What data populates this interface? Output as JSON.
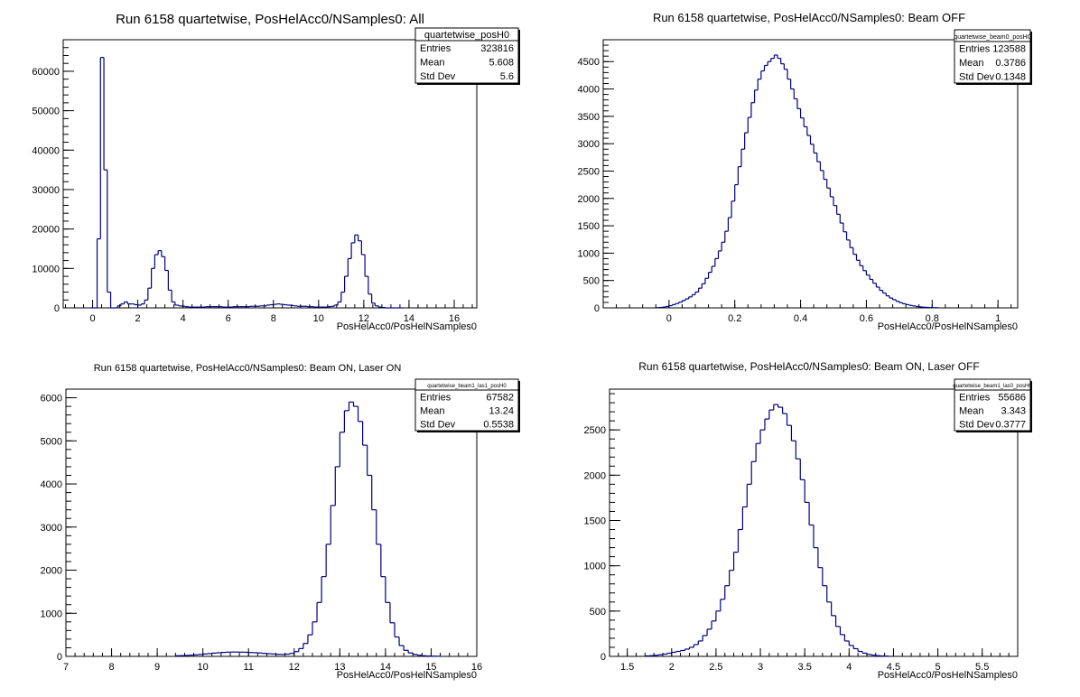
{
  "chart_data": [
    {
      "type": "histogram",
      "title": "Run 6158 quartetwise, PosHelAcc0/NSamples0: All",
      "xlabel": "PosHelAcc0/PosHelNSamples0",
      "ylabel": "",
      "xlim": [
        -1.3,
        17.0
      ],
      "ylim": [
        0,
        68000
      ],
      "xticks": [
        0,
        2,
        4,
        6,
        8,
        10,
        12,
        14,
        16
      ],
      "yticks": [
        0,
        10000,
        20000,
        30000,
        40000,
        50000,
        60000
      ],
      "stats": {
        "name": "quartetwise_posH0",
        "entries": "323816",
        "mean": "5.608",
        "std_dev": "5.6"
      },
      "bins": {
        "start": -0.1,
        "width": 0.15,
        "values": [
          0,
          0,
          17500,
          63500,
          35000,
          4000,
          0,
          0,
          500,
          1000,
          1500,
          1000,
          1000,
          800,
          700,
          1000,
          2000,
          5000,
          10000,
          13500,
          14500,
          13000,
          9500,
          4500,
          1500,
          700,
          500,
          400,
          300,
          200,
          200,
          200,
          200,
          200,
          300,
          300,
          300,
          300,
          300,
          200,
          200,
          200,
          300,
          300,
          300,
          300,
          300,
          400,
          400,
          400,
          500,
          500,
          700,
          800,
          900,
          1000,
          900,
          800,
          700,
          600,
          500,
          400,
          400,
          400,
          300,
          300,
          200,
          200,
          200,
          200,
          300,
          400,
          700,
          1500,
          4000,
          8000,
          12500,
          16500,
          18500,
          17000,
          13500,
          8000,
          3500,
          1200,
          500,
          200,
          100,
          0,
          0,
          0,
          0,
          0
        ]
      },
      "label_names": {
        "entries": "Entries",
        "mean": "Mean",
        "std_dev": "Std Dev"
      }
    },
    {
      "type": "histogram",
      "title": "Run 6158 quartetwise, PosHelAcc0/NSamples0: Beam OFF",
      "xlabel": "PosHelAcc0/PosHelNSamples0",
      "ylabel": "",
      "xlim": [
        -0.2,
        1.06
      ],
      "ylim": [
        0,
        4900
      ],
      "xticks": [
        0,
        0.2,
        0.4,
        0.6,
        0.8,
        1
      ],
      "yticks": [
        0,
        500,
        1000,
        1500,
        2000,
        2500,
        3000,
        3500,
        4000,
        4500
      ],
      "stats": {
        "name": "quartetwise_beam0_posH0",
        "entries": "123588",
        "mean": "0.3786",
        "std_dev": "0.1348"
      },
      "bins": {
        "start": -0.04,
        "width": 0.01,
        "values": [
          4,
          8,
          14,
          25,
          40,
          60,
          80,
          105,
          135,
          165,
          200,
          240,
          290,
          360,
          440,
          540,
          650,
          760,
          900,
          1040,
          1200,
          1400,
          1650,
          1950,
          2250,
          2580,
          2900,
          3200,
          3480,
          3750,
          3980,
          4180,
          4330,
          4430,
          4500,
          4560,
          4620,
          4560,
          4460,
          4360,
          4180,
          4000,
          3820,
          3640,
          3470,
          3310,
          3150,
          2990,
          2830,
          2670,
          2510,
          2350,
          2190,
          2030,
          1870,
          1710,
          1550,
          1390,
          1240,
          1100,
          980,
          870,
          770,
          680,
          600,
          520,
          450,
          380,
          320,
          270,
          220,
          180,
          150,
          120,
          95,
          75,
          60,
          45,
          35,
          25,
          18,
          12,
          9,
          6,
          4,
          3
        ]
      },
      "label_names": {
        "entries": "Entries",
        "mean": "Mean",
        "std_dev": "Std Dev"
      }
    },
    {
      "type": "histogram",
      "title": "Run 6158 quartetwise, PosHelAcc0/NSamples0: Beam ON, Laser ON",
      "xlabel": "PosHelAcc0/PosHelNSamples0",
      "ylabel": "",
      "xlim": [
        7,
        16
      ],
      "ylim": [
        0,
        6200
      ],
      "xticks": [
        7,
        8,
        9,
        10,
        11,
        12,
        13,
        14,
        15,
        16
      ],
      "yticks": [
        0,
        1000,
        2000,
        3000,
        4000,
        5000,
        6000
      ],
      "stats": {
        "name": "quartetwise_beam1_las1_posH0",
        "entries": "67582",
        "mean": "13.24",
        "std_dev": "0.5538"
      },
      "bins": {
        "start": 9.4,
        "width": 0.1,
        "values": [
          15,
          18,
          22,
          28,
          35,
          45,
          55,
          65,
          75,
          85,
          92,
          98,
          100,
          100,
          98,
          95,
          90,
          85,
          78,
          70,
          62,
          55,
          48,
          45,
          52,
          70,
          110,
          180,
          300,
          500,
          800,
          1250,
          1850,
          2600,
          3500,
          4400,
          5200,
          5700,
          5900,
          5800,
          5450,
          4900,
          4200,
          3400,
          2600,
          1850,
          1250,
          780,
          450,
          250,
          140,
          80,
          45,
          25,
          14,
          8,
          5,
          3
        ]
      },
      "label_names": {
        "entries": "Entries",
        "mean": "Mean",
        "std_dev": "Std Dev"
      }
    },
    {
      "type": "histogram",
      "title": "Run 6158 quartetwise, PosHelAcc0/NSamples0: Beam ON, Laser OFF",
      "xlabel": "PosHelAcc0/PosHelNSamples0",
      "ylabel": "",
      "xlim": [
        1.3,
        5.9
      ],
      "ylim": [
        0,
        2950
      ],
      "xticks": [
        1.5,
        2,
        2.5,
        3,
        3.5,
        4,
        4.5,
        5,
        5.5
      ],
      "yticks": [
        0,
        500,
        1000,
        1500,
        2000,
        2500
      ],
      "stats": {
        "name": "quartetwise_beam1_las0_posH0",
        "entries": "55686",
        "mean": "3.343",
        "std_dev": "0.3777"
      },
      "bins": {
        "start": 1.7,
        "width": 0.05,
        "values": [
          5,
          8,
          12,
          18,
          25,
          35,
          45,
          55,
          65,
          80,
          100,
          130,
          170,
          230,
          300,
          390,
          500,
          630,
          780,
          950,
          1150,
          1400,
          1650,
          1900,
          2150,
          2350,
          2500,
          2620,
          2720,
          2780,
          2750,
          2680,
          2550,
          2380,
          2180,
          1950,
          1700,
          1450,
          1200,
          980,
          780,
          600,
          450,
          330,
          240,
          170,
          120,
          85,
          55,
          35,
          22,
          14,
          8,
          5,
          3
        ]
      },
      "label_names": {
        "entries": "Entries",
        "mean": "Mean",
        "std_dev": "Std Dev"
      }
    }
  ]
}
